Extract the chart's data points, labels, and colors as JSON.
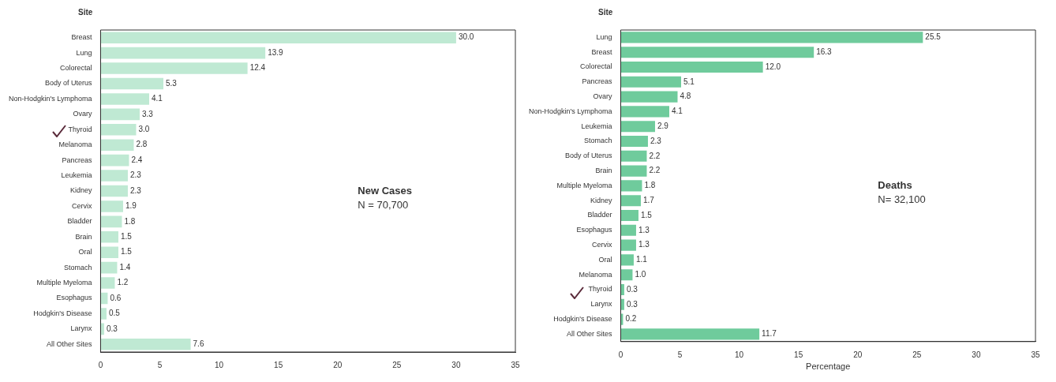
{
  "chart_data": [
    {
      "type": "bar",
      "orientation": "horizontal",
      "ylabel": "Site",
      "annotations": [
        "New Cases",
        "N = 70,700"
      ],
      "categories": [
        "Breast",
        "Lung",
        "Colorectal",
        "Body of Uterus",
        "Non-Hodgkin's Lymphoma",
        "Ovary",
        "Thyroid",
        "Melanoma",
        "Pancreas",
        "Leukemia",
        "Kidney",
        "Cervix",
        "Bladder",
        "Brain",
        "Oral",
        "Stomach",
        "Multiple Myeloma",
        "Esophagus",
        "Hodgkin's Disease",
        "Larynx",
        "All Other Sites"
      ],
      "values": [
        30.0,
        13.9,
        12.4,
        5.3,
        4.1,
        3.3,
        3.0,
        2.8,
        2.4,
        2.3,
        2.3,
        1.9,
        1.8,
        1.5,
        1.5,
        1.4,
        1.2,
        0.6,
        0.5,
        0.3,
        7.6
      ],
      "value_labels": [
        "30.0",
        "13.9",
        "12.4",
        "5.3",
        "4.1",
        "3.3",
        "3.0",
        "2.8",
        "2.4",
        "2.3",
        "2.3",
        "1.9",
        "1.8",
        "1.5",
        "1.5",
        "1.4",
        "1.2",
        "0.6",
        "0.5",
        "0.3",
        "7.6"
      ],
      "color": "#bfe9d3",
      "xlim": [
        0,
        35
      ],
      "xticks": [
        0,
        5,
        10,
        15,
        20,
        25,
        30,
        35
      ],
      "grid": false,
      "legend": false
    },
    {
      "type": "bar",
      "orientation": "horizontal",
      "ylabel": "Site",
      "xlabel": "Percentage",
      "annotations": [
        "Deaths",
        "N= 32,100"
      ],
      "categories": [
        "Lung",
        "Breast",
        "Colorectal",
        "Pancreas",
        "Ovary",
        "Non-Hodgkin's Lymphoma",
        "Leukemia",
        "Stomach",
        "Body of Uterus",
        "Brain",
        "Multiple Myeloma",
        "Kidney",
        "Bladder",
        "Esophagus",
        "Cervix",
        "Oral",
        "Melanoma",
        "Thyroid",
        "Larynx",
        "Hodgkin's Disease",
        "All Other Sites"
      ],
      "values": [
        25.5,
        16.3,
        12.0,
        5.1,
        4.8,
        4.1,
        2.9,
        2.3,
        2.2,
        2.2,
        1.8,
        1.7,
        1.5,
        1.3,
        1.3,
        1.1,
        1.0,
        0.3,
        0.3,
        0.2,
        11.7
      ],
      "value_labels": [
        "25.5",
        "16.3",
        "12.0",
        "5.1",
        "4.8",
        "4.1",
        "2.9",
        "2.3",
        "2.2",
        "2.2",
        "1.8",
        "1.7",
        "1.5",
        "1.3",
        "1.3",
        "1.1",
        "1.0",
        "0.3",
        "0.3",
        "0.2",
        "11.7"
      ],
      "color": "#6fcb9c",
      "xlim": [
        0,
        35
      ],
      "xticks": [
        0,
        5,
        10,
        15,
        20,
        25,
        30,
        35
      ],
      "grid": false,
      "legend": false
    }
  ]
}
